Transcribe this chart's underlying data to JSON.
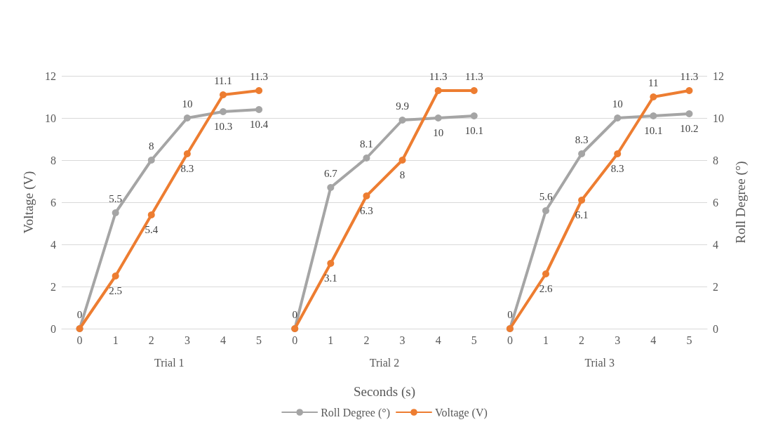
{
  "chart_data": {
    "type": "line",
    "xlabel": "Seconds (s)",
    "ylabel": "Voltage (V)",
    "y2label": "Roll Degree (°)",
    "categories": [
      "0",
      "1",
      "2",
      "3",
      "4",
      "5",
      "0",
      "1",
      "2",
      "3",
      "4",
      "5",
      "0",
      "1",
      "2",
      "3",
      "4",
      "5"
    ],
    "annotations": [
      "Trial 1",
      "Trial 2",
      "Trial 3"
    ],
    "series": [
      {
        "name": "Roll Degree (°)",
        "color": "#a5a5a5",
        "axis": "y2",
        "values": [
          0,
          5.5,
          8,
          10,
          10.3,
          10.4,
          null,
          null,
          null,
          null,
          null,
          null,
          null,
          null,
          null,
          null,
          null,
          null
        ],
        "value_labels": [
          "0",
          "5.5",
          "8",
          "10",
          "10.3",
          "10.4",
          null,
          null,
          null,
          null,
          null,
          null,
          null,
          null,
          null,
          null,
          null,
          null
        ]
      },
      {
        "name": "Voltage (V)",
        "color": "#ed7d31",
        "axis": "y",
        "values": [
          0,
          2.5,
          5.4,
          8.3,
          11.1,
          11.3,
          null,
          null,
          null,
          null,
          null,
          null,
          null,
          null,
          null,
          null,
          null,
          null
        ],
        "value_labels": [
          null,
          "2.5",
          "5.4",
          "8.3",
          "11.1",
          "11.3",
          null,
          null,
          null,
          null,
          null,
          null,
          null,
          null,
          null,
          null,
          null,
          null
        ]
      },
      {
        "color": "#a5a5a5",
        "axis": "y2",
        "values": [
          null,
          null,
          null,
          null,
          null,
          null,
          0,
          6.7,
          8.1,
          9.9,
          10,
          10.1,
          null,
          null,
          null,
          null,
          null,
          null
        ],
        "value_labels": [
          null,
          null,
          null,
          null,
          null,
          null,
          "0",
          "6.7",
          "8.1",
          "9.9",
          "10",
          "10.1",
          null,
          null,
          null,
          null,
          null,
          null
        ]
      },
      {
        "color": "#ed7d31",
        "axis": "y",
        "values": [
          null,
          null,
          null,
          null,
          null,
          null,
          0,
          3.1,
          6.3,
          8,
          11.3,
          11.3,
          null,
          null,
          null,
          null,
          null,
          null
        ],
        "value_labels": [
          null,
          null,
          null,
          null,
          null,
          null,
          null,
          "3.1",
          "6.3",
          "8",
          "11.3",
          "11.3",
          null,
          null,
          null,
          null,
          null,
          null
        ]
      },
      {
        "color": "#a5a5a5",
        "axis": "y2",
        "values": [
          null,
          null,
          null,
          null,
          null,
          null,
          null,
          null,
          null,
          null,
          null,
          null,
          0,
          5.6,
          8.3,
          10,
          10.1,
          10.2
        ],
        "value_labels": [
          null,
          null,
          null,
          null,
          null,
          null,
          null,
          null,
          null,
          null,
          null,
          null,
          "0",
          "5.6",
          "8.3",
          "10",
          "10.1",
          "10.2"
        ]
      },
      {
        "color": "#ed7d31",
        "axis": "y",
        "values": [
          null,
          null,
          null,
          null,
          null,
          null,
          null,
          null,
          null,
          null,
          null,
          null,
          0,
          2.6,
          6.1,
          8.3,
          11,
          11.3
        ],
        "value_labels": [
          null,
          null,
          null,
          null,
          null,
          null,
          null,
          null,
          null,
          null,
          null,
          null,
          null,
          "2.6",
          "6.1",
          "8.3",
          "11",
          "11.3"
        ]
      }
    ],
    "ylim": [
      0,
      12
    ],
    "yticks": [
      0,
      2,
      4,
      6,
      8,
      10,
      12
    ],
    "y2lim": [
      0,
      12
    ],
    "y2ticks": [
      0,
      2,
      4,
      6,
      8,
      10,
      12
    ],
    "grid": "y",
    "legend": "bottom",
    "marker": "circle",
    "line_style": "solid"
  }
}
